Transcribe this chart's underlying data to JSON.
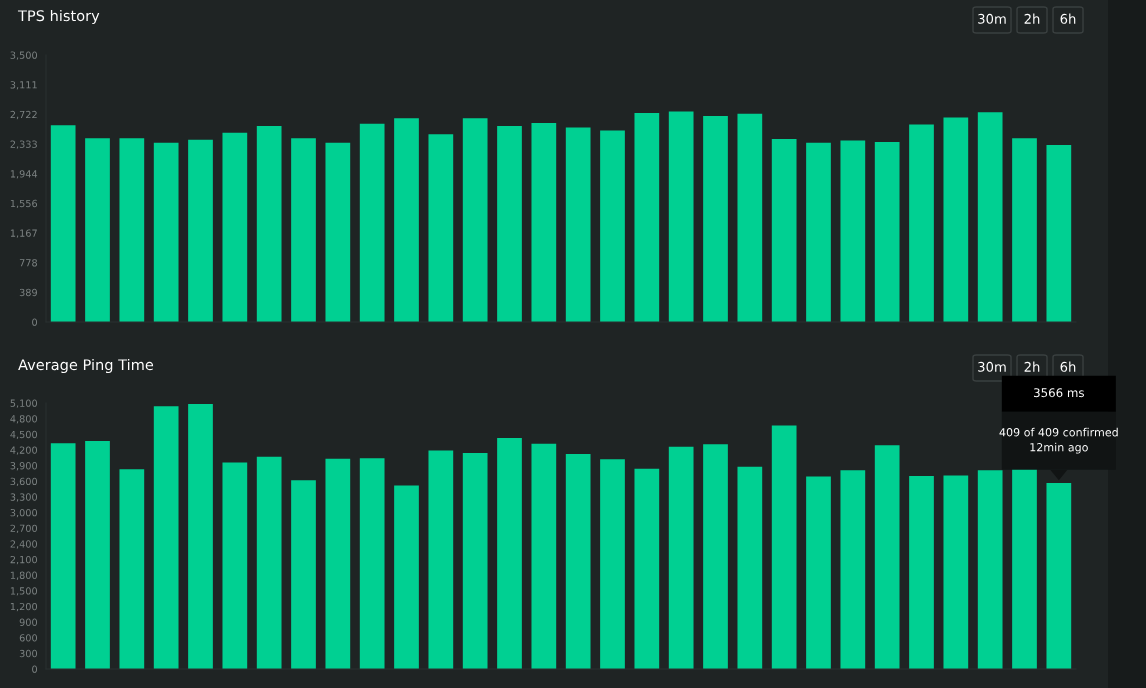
{
  "chart_data": [
    {
      "type": "bar",
      "title": "TPS history",
      "categories": [
        null,
        null,
        null,
        null,
        null,
        null,
        null,
        null,
        null,
        null,
        null,
        null,
        null,
        null,
        null,
        null,
        null,
        null,
        null,
        null,
        null,
        null,
        null,
        null,
        null,
        null,
        null,
        null,
        null,
        null
      ],
      "values": [
        2580,
        2410,
        2410,
        2350,
        2390,
        2480,
        2570,
        2410,
        2350,
        2600,
        2670,
        2460,
        2670,
        2570,
        2610,
        2550,
        2510,
        2740,
        2760,
        2700,
        2730,
        2400,
        2350,
        2380,
        2360,
        2590,
        2680,
        2750,
        2410,
        2320
      ],
      "color": "#00d092",
      "ylim": [
        0,
        3500
      ],
      "yticks": [
        0,
        389,
        778,
        {
          "value": 1167,
          "label": "1,167"
        },
        {
          "value": 1556,
          "label": "1,556"
        },
        {
          "value": 1944,
          "label": "1,944"
        },
        {
          "value": 2333,
          "label": "2,333"
        },
        {
          "value": 2722,
          "label": "2,722"
        },
        {
          "value": 3111,
          "label": "3,111"
        },
        {
          "value": 3500,
          "label": "3,500"
        }
      ],
      "grid": false,
      "annotations": [
        "30m",
        "2h",
        "6h"
      ]
    },
    {
      "type": "bar",
      "title": "Average Ping Time",
      "categories": [
        null,
        null,
        null,
        null,
        null,
        null,
        null,
        null,
        null,
        null,
        null,
        null,
        null,
        null,
        null,
        null,
        null,
        null,
        null,
        null,
        null,
        null,
        null,
        null,
        null,
        null,
        null,
        null,
        null,
        null
      ],
      "values": [
        4330,
        4370,
        3830,
        5040,
        5080,
        3960,
        4070,
        3620,
        4030,
        4040,
        3520,
        4190,
        4140,
        4430,
        4320,
        4120,
        4020,
        3840,
        4260,
        4310,
        3880,
        4670,
        3690,
        3810,
        4290,
        3700,
        3710,
        3810,
        3870,
        3566
      ],
      "color": "#00d092",
      "ylim": [
        0,
        5100
      ],
      "yticks": [
        0,
        300,
        600,
        900,
        {
          "value": 1200,
          "label": "1,200"
        },
        {
          "value": 1500,
          "label": "1,500"
        },
        {
          "value": 1800,
          "label": "1,800"
        },
        {
          "value": 2100,
          "label": "2,100"
        },
        {
          "value": 2400,
          "label": "2,400"
        },
        {
          "value": 2700,
          "label": "2,700"
        },
        {
          "value": 3000,
          "label": "3,000"
        },
        {
          "value": 3300,
          "label": "3,300"
        },
        {
          "value": 3600,
          "label": "3,600"
        },
        {
          "value": 3900,
          "label": "3,900"
        },
        {
          "value": 4200,
          "label": "4,200"
        },
        {
          "value": 4500,
          "label": "4,500"
        },
        {
          "value": 4800,
          "label": "4,800"
        },
        {
          "value": 5100,
          "label": "5,100"
        }
      ],
      "grid": false,
      "annotations": [
        "30m",
        "2h",
        "6h",
        "3566 ms",
        "409 of 409 confirmed\n12min ago"
      ]
    }
  ]
}
